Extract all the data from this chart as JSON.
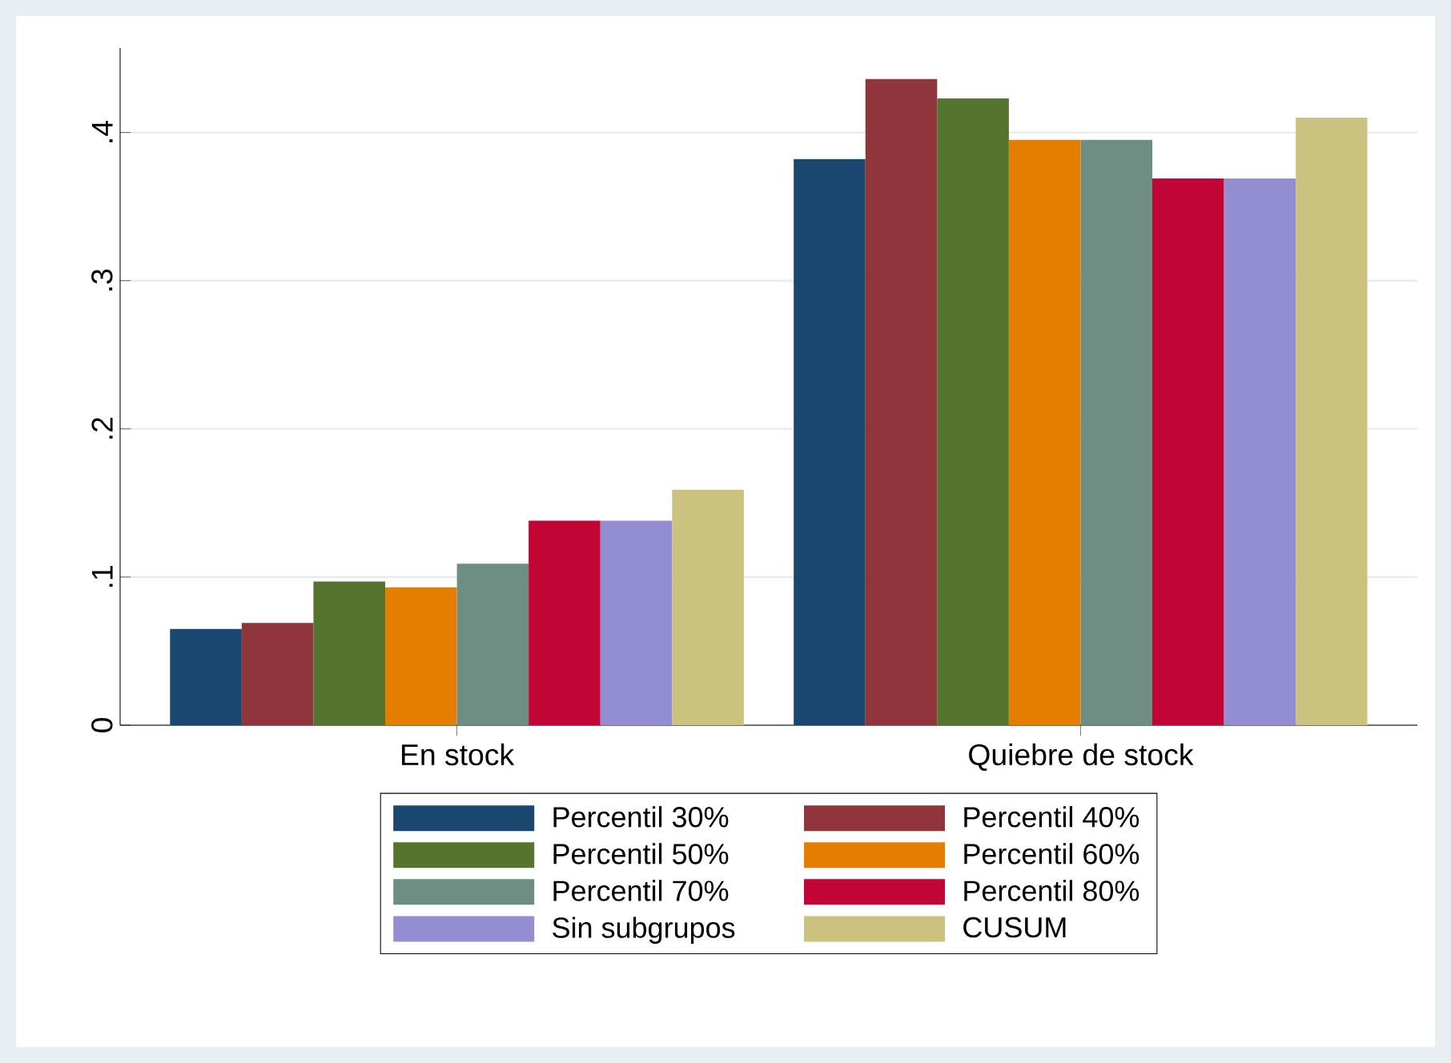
{
  "chart_data": {
    "type": "bar",
    "categories": [
      "En stock",
      "Quiebre de stock"
    ],
    "series": [
      {
        "name": "Percentil 30%",
        "color": "#1a476f",
        "values": [
          0.065,
          0.382
        ]
      },
      {
        "name": "Percentil 40%",
        "color": "#90353b",
        "values": [
          0.069,
          0.436
        ]
      },
      {
        "name": "Percentil 50%",
        "color": "#55752f",
        "values": [
          0.097,
          0.423
        ]
      },
      {
        "name": "Percentil 60%",
        "color": "#e37e00",
        "values": [
          0.093,
          0.395
        ]
      },
      {
        "name": "Percentil 70%",
        "color": "#6e8e84",
        "values": [
          0.109,
          0.395
        ]
      },
      {
        "name": "Percentil 80%",
        "color": "#c10534",
        "values": [
          0.138,
          0.369
        ]
      },
      {
        "name": "Sin subgrupos",
        "color": "#938dd2",
        "values": [
          0.138,
          0.369
        ]
      },
      {
        "name": "CUSUM",
        "color": "#cac27e",
        "values": [
          0.159,
          0.41
        ]
      }
    ],
    "ylim": [
      0,
      0.457
    ],
    "yticks": [
      0,
      {
        "value": 0.1,
        "label": ".1"
      },
      {
        "value": 0.2,
        "label": ".2"
      },
      {
        "value": 0.3,
        "label": ".3"
      },
      {
        "value": 0.4,
        "label": ".4"
      }
    ],
    "grid": "y",
    "legend": "bottom"
  }
}
